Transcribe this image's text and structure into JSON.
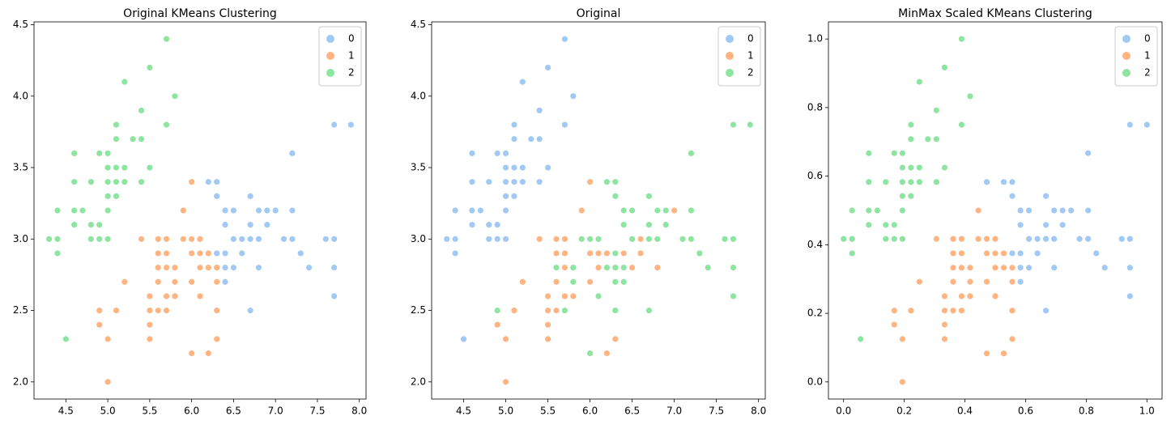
{
  "chart_data": [
    {
      "type": "scatter",
      "title": "Original KMeans Clustering",
      "legend": "upper right",
      "xlim": [
        4.12,
        8.08
      ],
      "ylim": [
        1.88,
        4.52
      ],
      "xticks": [
        {
          "value": 4.5,
          "label": "4.5"
        },
        {
          "value": 5,
          "label": "5.0"
        },
        {
          "value": 5.5,
          "label": "5.5"
        },
        {
          "value": 6,
          "label": "6.0"
        },
        {
          "value": 6.5,
          "label": "6.5"
        },
        {
          "value": 7,
          "label": "7.0"
        },
        {
          "value": 7.5,
          "label": "7.5"
        },
        {
          "value": 8,
          "label": "8.0"
        }
      ],
      "yticks": [
        {
          "value": 2,
          "label": "2.0"
        },
        {
          "value": 2.5,
          "label": "2.5"
        },
        {
          "value": 3,
          "label": "3.0"
        },
        {
          "value": 3.5,
          "label": "3.5"
        },
        {
          "value": 4,
          "label": "4.0"
        },
        {
          "value": 4.5,
          "label": "4.5"
        }
      ],
      "series": [
        {
          "name": "0",
          "color": "#a1c9f4",
          "x": [
            7.0,
            6.4,
            6.9,
            6.5,
            6.3,
            6.6,
            6.7,
            6.4,
            6.6,
            6.8,
            6.7,
            7.1,
            6.3,
            6.5,
            7.6,
            7.3,
            6.7,
            7.2,
            6.5,
            6.4,
            6.8,
            7.7,
            7.7,
            6.9,
            7.7,
            6.7,
            7.2,
            6.4,
            7.2,
            7.4,
            7.9,
            7.7,
            6.3,
            6.4,
            6.8,
            6.2
          ],
          "values": [
            3.2,
            3.2,
            3.1,
            2.8,
            3.3,
            2.9,
            3.1,
            2.9,
            3.0,
            2.8,
            3.0,
            3.0,
            2.9,
            3.0,
            3.0,
            2.9,
            2.5,
            3.6,
            3.2,
            2.7,
            3.0,
            3.8,
            2.6,
            3.2,
            2.8,
            3.3,
            3.2,
            2.8,
            3.0,
            2.8,
            3.8,
            3.0,
            3.4,
            3.1,
            3.2,
            3.4
          ]
        },
        {
          "name": "1",
          "color": "#ffb482",
          "x": [
            5.5,
            5.7,
            4.9,
            5.2,
            5.0,
            5.9,
            6.0,
            6.1,
            5.6,
            5.6,
            5.8,
            6.2,
            5.6,
            5.9,
            6.1,
            6.3,
            6.0,
            5.7,
            5.5,
            6.0,
            5.4,
            6.3,
            5.5,
            5.5,
            6.1,
            5.8,
            5.0,
            5.6,
            5.7,
            5.7,
            6.2,
            5.1,
            4.9,
            5.7,
            5.8,
            6.0,
            5.6,
            6.3,
            6.2,
            6.3,
            6.1,
            6.0
          ],
          "values": [
            2.3,
            2.8,
            2.4,
            2.7,
            2.0,
            3.0,
            2.2,
            2.9,
            2.9,
            3.0,
            2.7,
            2.2,
            2.5,
            3.2,
            2.8,
            2.5,
            2.9,
            2.6,
            2.4,
            2.7,
            3.0,
            2.3,
            2.5,
            2.6,
            3.0,
            2.6,
            2.3,
            2.7,
            3.0,
            2.9,
            2.9,
            2.5,
            2.5,
            2.5,
            2.8,
            3.0,
            2.8,
            2.7,
            2.8,
            2.8,
            2.6,
            3.4
          ]
        },
        {
          "name": "2",
          "color": "#8de5a1",
          "x": [
            5.1,
            4.9,
            4.7,
            4.6,
            5.0,
            5.4,
            4.6,
            5.0,
            4.4,
            4.9,
            5.4,
            4.8,
            4.8,
            4.3,
            5.8,
            5.7,
            5.7,
            5.1,
            5.4,
            5.1,
            4.6,
            5.1,
            5.0,
            5.2,
            5.2,
            4.8,
            5.2,
            5.5,
            5.0,
            5.5,
            4.9,
            4.4,
            5.1,
            5.0,
            4.5,
            4.4,
            4.6,
            5.3,
            5.0
          ],
          "values": [
            3.5,
            3.0,
            3.2,
            3.1,
            3.6,
            3.9,
            3.4,
            3.4,
            2.9,
            3.1,
            3.7,
            3.4,
            3.0,
            3.0,
            4.0,
            4.4,
            3.8,
            3.8,
            3.4,
            3.7,
            3.6,
            3.3,
            3.0,
            3.5,
            3.4,
            3.1,
            4.1,
            4.2,
            3.2,
            3.5,
            3.6,
            3.0,
            3.4,
            3.5,
            2.3,
            3.2,
            3.2,
            3.7,
            3.3
          ]
        }
      ]
    },
    {
      "type": "scatter",
      "title": "Original",
      "legend": "upper right",
      "xlim": [
        4.12,
        8.08
      ],
      "ylim": [
        1.88,
        4.52
      ],
      "xticks": [
        {
          "value": 4.5,
          "label": "4.5"
        },
        {
          "value": 5,
          "label": "5.0"
        },
        {
          "value": 5.5,
          "label": "5.5"
        },
        {
          "value": 6,
          "label": "6.0"
        },
        {
          "value": 6.5,
          "label": "6.5"
        },
        {
          "value": 7,
          "label": "7.0"
        },
        {
          "value": 7.5,
          "label": "7.5"
        },
        {
          "value": 8,
          "label": "8.0"
        }
      ],
      "yticks": [
        {
          "value": 2,
          "label": "2.0"
        },
        {
          "value": 2.5,
          "label": "2.5"
        },
        {
          "value": 3,
          "label": "3.0"
        },
        {
          "value": 3.5,
          "label": "3.5"
        },
        {
          "value": 4,
          "label": "4.0"
        },
        {
          "value": 4.5,
          "label": "4.5"
        }
      ],
      "series": [
        {
          "name": "0",
          "color": "#a1c9f4",
          "x": [
            5.1,
            4.9,
            4.7,
            4.6,
            5.0,
            5.4,
            4.6,
            5.0,
            4.4,
            4.9,
            5.4,
            4.8,
            4.8,
            4.3,
            5.8,
            5.7,
            5.7,
            5.1,
            5.4,
            5.1,
            4.6,
            5.1,
            5.0,
            5.2,
            5.2,
            4.8,
            5.2,
            5.5,
            5.0,
            5.5,
            4.9,
            4.4,
            5.1,
            5.0,
            4.5,
            4.4,
            4.6,
            5.3,
            5.0
          ],
          "values": [
            3.5,
            3.0,
            3.2,
            3.1,
            3.6,
            3.9,
            3.4,
            3.4,
            2.9,
            3.1,
            3.7,
            3.4,
            3.0,
            3.0,
            4.0,
            4.4,
            3.8,
            3.8,
            3.4,
            3.7,
            3.6,
            3.3,
            3.0,
            3.5,
            3.4,
            3.1,
            4.1,
            4.2,
            3.2,
            3.5,
            3.6,
            3.0,
            3.4,
            3.5,
            2.3,
            3.2,
            3.2,
            3.7,
            3.3
          ]
        },
        {
          "name": "1",
          "color": "#ffb482",
          "x": [
            7.0,
            6.4,
            6.9,
            5.5,
            6.5,
            5.7,
            6.3,
            4.9,
            6.6,
            5.2,
            5.0,
            5.9,
            6.0,
            6.1,
            5.6,
            6.7,
            5.6,
            5.8,
            6.2,
            5.6,
            5.9,
            6.1,
            6.3,
            6.4,
            6.6,
            6.8,
            6.7,
            6.0,
            5.7,
            5.5,
            6.0,
            5.4,
            6.0,
            6.3,
            5.5,
            5.5,
            6.1,
            5.8,
            5.0,
            5.6,
            5.7,
            5.7,
            6.2,
            5.1
          ],
          "values": [
            3.2,
            3.2,
            3.1,
            2.3,
            2.8,
            2.8,
            3.3,
            2.4,
            2.9,
            2.7,
            2.0,
            3.0,
            2.2,
            2.9,
            2.9,
            3.1,
            3.0,
            2.7,
            2.2,
            2.5,
            3.2,
            2.8,
            2.5,
            2.9,
            3.0,
            2.8,
            3.0,
            2.9,
            2.6,
            2.4,
            2.7,
            3.0,
            3.4,
            2.3,
            2.5,
            2.6,
            3.0,
            2.6,
            2.3,
            2.7,
            3.0,
            2.9,
            2.9,
            2.5
          ]
        },
        {
          "name": "2",
          "color": "#8de5a1",
          "x": [
            6.3,
            5.8,
            7.1,
            6.3,
            6.5,
            7.6,
            4.9,
            7.3,
            6.7,
            7.2,
            6.5,
            6.4,
            6.8,
            5.7,
            5.8,
            6.4,
            7.7,
            7.7,
            6.0,
            6.9,
            5.6,
            7.7,
            6.3,
            6.7,
            7.2,
            6.2,
            6.1,
            6.4,
            7.2,
            7.4,
            7.9,
            6.3,
            6.1,
            7.7,
            6.3,
            6.4,
            6.0,
            6.9,
            6.7,
            6.8,
            6.7,
            6.3,
            6.2,
            5.9
          ],
          "values": [
            3.3,
            2.7,
            3.0,
            2.9,
            3.0,
            3.0,
            2.5,
            2.9,
            2.5,
            3.6,
            3.2,
            2.7,
            3.0,
            2.5,
            2.8,
            3.2,
            3.8,
            2.6,
            2.2,
            3.2,
            2.8,
            2.8,
            2.7,
            3.3,
            3.2,
            2.8,
            3.0,
            2.8,
            3.0,
            2.8,
            3.8,
            2.8,
            2.6,
            3.0,
            3.4,
            3.1,
            3.0,
            3.1,
            3.1,
            3.2,
            3.0,
            2.5,
            3.4,
            3.0
          ]
        }
      ]
    },
    {
      "type": "scatter",
      "title": "MinMax Scaled KMeans Clustering",
      "legend": "upper right",
      "xlim": [
        -0.05,
        1.05
      ],
      "ylim": [
        -0.05,
        1.05
      ],
      "xticks": [
        {
          "value": 0,
          "label": "0.0"
        },
        {
          "value": 0.2,
          "label": "0.2"
        },
        {
          "value": 0.4,
          "label": "0.4"
        },
        {
          "value": 0.6,
          "label": "0.6"
        },
        {
          "value": 0.8,
          "label": "0.8"
        },
        {
          "value": 1,
          "label": "1.0"
        }
      ],
      "yticks": [
        {
          "value": 0,
          "label": "0.0"
        },
        {
          "value": 0.2,
          "label": "0.2"
        },
        {
          "value": 0.4,
          "label": "0.4"
        },
        {
          "value": 0.6,
          "label": "0.6"
        },
        {
          "value": 0.8,
          "label": "0.8"
        },
        {
          "value": 1,
          "label": "1.0"
        }
      ],
      "series": [
        {
          "name": "0",
          "color": "#a1c9f4",
          "x": [
            0.75,
            0.583,
            0.722,
            0.611,
            0.556,
            0.639,
            0.667,
            0.583,
            0.639,
            0.694,
            0.667,
            0.778,
            0.556,
            0.611,
            0.917,
            0.833,
            0.667,
            0.806,
            0.611,
            0.583,
            0.694,
            0.944,
            0.944,
            0.722,
            0.944,
            0.667,
            0.806,
            0.583,
            0.806,
            0.861,
            1,
            0.944,
            0.556,
            0.583,
            0.694,
            0.528,
            0.472
          ],
          "values": [
            0.5,
            0.5,
            0.458,
            0.333,
            0.542,
            0.375,
            0.458,
            0.375,
            0.417,
            0.333,
            0.417,
            0.417,
            0.375,
            0.417,
            0.417,
            0.375,
            0.208,
            0.667,
            0.5,
            0.292,
            0.417,
            0.75,
            0.25,
            0.5,
            0.333,
            0.542,
            0.5,
            0.333,
            0.417,
            0.333,
            0.75,
            0.417,
            0.583,
            0.458,
            0.5,
            0.583,
            0.583
          ]
        },
        {
          "name": "1",
          "color": "#ffb482",
          "x": [
            0.333,
            0.389,
            0.167,
            0.25,
            0.194,
            0.444,
            0.472,
            0.5,
            0.361,
            0.361,
            0.417,
            0.528,
            0.361,
            0.444,
            0.5,
            0.556,
            0.472,
            0.389,
            0.333,
            0.472,
            0.306,
            0.556,
            0.333,
            0.333,
            0.5,
            0.417,
            0.194,
            0.361,
            0.389,
            0.389,
            0.528,
            0.222,
            0.167,
            0.389,
            0.417,
            0.472,
            0.361,
            0.556,
            0.528,
            0.556,
            0.5
          ],
          "values": [
            0.125,
            0.333,
            0.167,
            0.292,
            0,
            0.417,
            0.083,
            0.375,
            0.375,
            0.417,
            0.292,
            0.083,
            0.208,
            0.5,
            0.333,
            0.208,
            0.375,
            0.25,
            0.167,
            0.292,
            0.417,
            0.125,
            0.208,
            0.25,
            0.417,
            0.25,
            0.125,
            0.292,
            0.417,
            0.375,
            0.375,
            0.208,
            0.208,
            0.208,
            0.333,
            0.417,
            0.333,
            0.292,
            0.333,
            0.333,
            0.25
          ]
        },
        {
          "name": "2",
          "color": "#8de5a1",
          "x": [
            0.222,
            0.167,
            0.111,
            0.083,
            0.194,
            0.306,
            0.083,
            0.194,
            0.028,
            0.167,
            0.306,
            0.139,
            0.139,
            0,
            0.417,
            0.389,
            0.389,
            0.222,
            0.306,
            0.222,
            0.083,
            0.222,
            0.194,
            0.25,
            0.25,
            0.139,
            0.25,
            0.333,
            0.194,
            0.333,
            0.167,
            0.028,
            0.222,
            0.194,
            0.056,
            0.028,
            0.083,
            0.278,
            0.194
          ],
          "values": [
            0.625,
            0.417,
            0.5,
            0.458,
            0.667,
            0.792,
            0.583,
            0.583,
            0.375,
            0.458,
            0.708,
            0.583,
            0.417,
            0.417,
            0.833,
            1,
            0.75,
            0.75,
            0.583,
            0.708,
            0.667,
            0.542,
            0.417,
            0.625,
            0.583,
            0.458,
            0.875,
            0.917,
            0.5,
            0.625,
            0.667,
            0.417,
            0.583,
            0.625,
            0.125,
            0.5,
            0.5,
            0.708,
            0.542
          ]
        }
      ]
    }
  ]
}
